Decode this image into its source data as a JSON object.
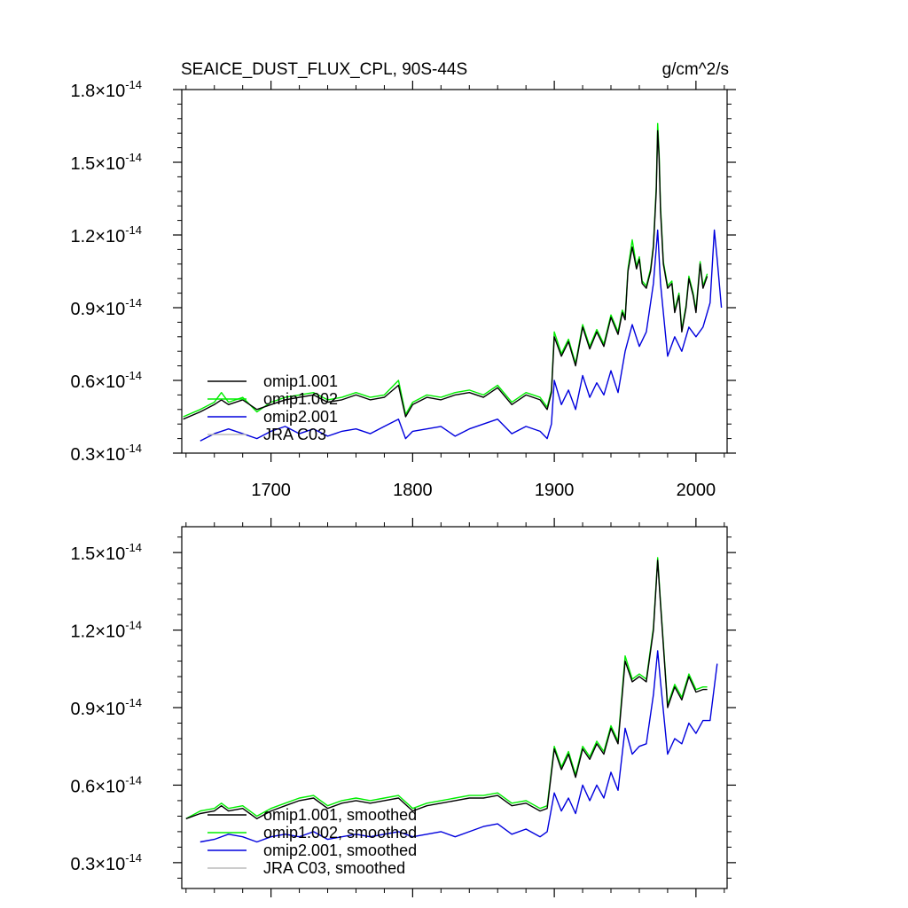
{
  "chart_data": [
    {
      "type": "line",
      "title": "SEAICE_DUST_FLUX_CPL, 90S-44S",
      "units": "g/cm^2/s",
      "xlim": [
        1637,
        2022
      ],
      "ylim": [
        0.3,
        1.8
      ],
      "y_exponent": "-14",
      "xticks": [
        1700,
        1800,
        1900,
        2000
      ],
      "yticks": [
        0.3,
        0.6,
        0.9,
        1.2,
        1.5,
        1.8
      ],
      "ytick_labels": [
        "0.3",
        "0.6",
        "0.9",
        "1.2",
        "1.5",
        "1.8"
      ],
      "legend_position": "bottom-left",
      "series": [
        {
          "name": "omip1.001",
          "color": "#000000",
          "x": [
            1638,
            1650,
            1660,
            1665,
            1670,
            1680,
            1690,
            1700,
            1710,
            1720,
            1730,
            1740,
            1750,
            1760,
            1770,
            1780,
            1790,
            1795,
            1800,
            1810,
            1820,
            1830,
            1840,
            1850,
            1860,
            1870,
            1880,
            1890,
            1895,
            1898,
            1900,
            1905,
            1910,
            1915,
            1920,
            1925,
            1930,
            1935,
            1940,
            1945,
            1948,
            1950,
            1952,
            1955,
            1958,
            1960,
            1962,
            1965,
            1968,
            1970,
            1972,
            1973,
            1974,
            1975,
            1977,
            1980,
            1983,
            1985,
            1988,
            1990,
            1993,
            1995,
            1998,
            2000,
            2003,
            2005,
            2008
          ],
          "y": [
            0.44,
            0.47,
            0.5,
            0.52,
            0.5,
            0.52,
            0.48,
            0.5,
            0.52,
            0.53,
            0.54,
            0.51,
            0.52,
            0.54,
            0.52,
            0.53,
            0.58,
            0.45,
            0.5,
            0.53,
            0.52,
            0.54,
            0.55,
            0.53,
            0.57,
            0.5,
            0.54,
            0.52,
            0.48,
            0.55,
            0.78,
            0.7,
            0.76,
            0.66,
            0.82,
            0.73,
            0.8,
            0.74,
            0.86,
            0.79,
            0.88,
            0.85,
            1.05,
            1.15,
            1.06,
            1.1,
            1.0,
            0.98,
            1.05,
            1.15,
            1.38,
            1.63,
            1.52,
            1.3,
            1.08,
            0.98,
            1.0,
            0.88,
            0.95,
            0.8,
            0.9,
            1.02,
            0.95,
            0.88,
            1.08,
            0.98,
            1.03
          ]
        },
        {
          "name": "omip1.002",
          "color": "#00ee00",
          "x": [
            1638,
            1650,
            1660,
            1665,
            1670,
            1680,
            1690,
            1700,
            1710,
            1720,
            1730,
            1740,
            1750,
            1760,
            1770,
            1780,
            1790,
            1795,
            1800,
            1810,
            1820,
            1830,
            1840,
            1850,
            1860,
            1870,
            1880,
            1890,
            1895,
            1898,
            1900,
            1905,
            1910,
            1915,
            1920,
            1925,
            1930,
            1935,
            1940,
            1945,
            1948,
            1950,
            1952,
            1955,
            1958,
            1960,
            1962,
            1965,
            1968,
            1970,
            1972,
            1973,
            1974,
            1975,
            1977,
            1980,
            1983,
            1985,
            1988,
            1990,
            1993,
            1995,
            1998,
            2000,
            2003,
            2005,
            2008
          ],
          "y": [
            0.45,
            0.48,
            0.51,
            0.55,
            0.51,
            0.53,
            0.47,
            0.51,
            0.53,
            0.54,
            0.55,
            0.52,
            0.53,
            0.55,
            0.53,
            0.54,
            0.6,
            0.46,
            0.51,
            0.54,
            0.53,
            0.55,
            0.56,
            0.54,
            0.58,
            0.51,
            0.55,
            0.53,
            0.49,
            0.56,
            0.8,
            0.71,
            0.77,
            0.67,
            0.83,
            0.74,
            0.81,
            0.75,
            0.87,
            0.8,
            0.89,
            0.86,
            1.06,
            1.18,
            1.07,
            1.11,
            1.01,
            0.99,
            1.06,
            1.16,
            1.4,
            1.66,
            1.54,
            1.32,
            1.09,
            0.99,
            1.01,
            0.89,
            0.96,
            0.81,
            0.91,
            1.03,
            0.96,
            0.89,
            1.09,
            0.99,
            1.04
          ]
        },
        {
          "name": "omip2.001",
          "color": "#0000dd",
          "x": [
            1650,
            1660,
            1670,
            1680,
            1690,
            1700,
            1710,
            1720,
            1730,
            1740,
            1750,
            1760,
            1770,
            1780,
            1790,
            1795,
            1800,
            1810,
            1820,
            1830,
            1840,
            1850,
            1860,
            1870,
            1880,
            1890,
            1895,
            1898,
            1900,
            1905,
            1910,
            1915,
            1920,
            1925,
            1930,
            1935,
            1940,
            1945,
            1950,
            1955,
            1960,
            1965,
            1970,
            1973,
            1975,
            1978,
            1980,
            1985,
            1990,
            1995,
            2000,
            2005,
            2010,
            2013,
            2015,
            2018
          ],
          "y": [
            0.35,
            0.38,
            0.4,
            0.38,
            0.36,
            0.39,
            0.41,
            0.38,
            0.4,
            0.37,
            0.39,
            0.4,
            0.38,
            0.41,
            0.44,
            0.36,
            0.39,
            0.4,
            0.41,
            0.37,
            0.4,
            0.42,
            0.44,
            0.38,
            0.41,
            0.39,
            0.36,
            0.42,
            0.6,
            0.5,
            0.56,
            0.48,
            0.62,
            0.53,
            0.59,
            0.54,
            0.64,
            0.55,
            0.72,
            0.83,
            0.74,
            0.8,
            1.0,
            1.22,
            1.0,
            0.82,
            0.7,
            0.78,
            0.72,
            0.82,
            0.78,
            0.82,
            0.92,
            1.22,
            1.1,
            0.9
          ]
        },
        {
          "name": "JRA C03",
          "color": "#bbbbbb",
          "x": [],
          "y": []
        }
      ]
    },
    {
      "type": "line",
      "title": "",
      "xlim": [
        1637,
        2022
      ],
      "ylim": [
        0.2,
        1.6
      ],
      "y_exponent": "-14",
      "xticks": [
        1700,
        1800,
        1900,
        2000
      ],
      "yticks": [
        0.3,
        0.6,
        0.9,
        1.2,
        1.5
      ],
      "ytick_labels": [
        "0.3",
        "0.6",
        "0.9",
        "1.2",
        "1.5"
      ],
      "legend_position": "bottom-left",
      "series": [
        {
          "name": "omip1.001, smoothed",
          "color": "#000000",
          "x": [
            1640,
            1650,
            1660,
            1665,
            1670,
            1680,
            1690,
            1700,
            1710,
            1720,
            1730,
            1740,
            1750,
            1760,
            1770,
            1780,
            1790,
            1800,
            1810,
            1820,
            1830,
            1840,
            1850,
            1860,
            1870,
            1880,
            1890,
            1895,
            1900,
            1905,
            1910,
            1915,
            1920,
            1925,
            1930,
            1935,
            1940,
            1945,
            1950,
            1955,
            1960,
            1965,
            1970,
            1973,
            1975,
            1980,
            1985,
            1990,
            1995,
            2000,
            2005,
            2008
          ],
          "y": [
            0.47,
            0.49,
            0.5,
            0.52,
            0.5,
            0.51,
            0.47,
            0.5,
            0.52,
            0.54,
            0.55,
            0.51,
            0.53,
            0.54,
            0.53,
            0.54,
            0.55,
            0.5,
            0.52,
            0.53,
            0.54,
            0.55,
            0.55,
            0.56,
            0.52,
            0.53,
            0.5,
            0.51,
            0.74,
            0.66,
            0.72,
            0.63,
            0.74,
            0.7,
            0.76,
            0.72,
            0.82,
            0.76,
            1.08,
            1.0,
            1.02,
            1.0,
            1.2,
            1.47,
            1.3,
            0.9,
            0.98,
            0.93,
            1.02,
            0.96,
            0.97,
            0.97
          ]
        },
        {
          "name": "omip1.002, smoothed",
          "color": "#00ee00",
          "x": [
            1640,
            1650,
            1660,
            1665,
            1670,
            1680,
            1690,
            1700,
            1710,
            1720,
            1730,
            1740,
            1750,
            1760,
            1770,
            1780,
            1790,
            1800,
            1810,
            1820,
            1830,
            1840,
            1850,
            1860,
            1870,
            1880,
            1890,
            1895,
            1900,
            1905,
            1910,
            1915,
            1920,
            1925,
            1930,
            1935,
            1940,
            1945,
            1950,
            1955,
            1960,
            1965,
            1970,
            1973,
            1975,
            1980,
            1985,
            1990,
            1995,
            2000,
            2005,
            2008
          ],
          "y": [
            0.47,
            0.5,
            0.51,
            0.53,
            0.51,
            0.52,
            0.48,
            0.51,
            0.53,
            0.55,
            0.56,
            0.52,
            0.54,
            0.55,
            0.54,
            0.55,
            0.56,
            0.51,
            0.53,
            0.54,
            0.55,
            0.56,
            0.56,
            0.57,
            0.53,
            0.54,
            0.51,
            0.52,
            0.75,
            0.67,
            0.73,
            0.64,
            0.75,
            0.71,
            0.77,
            0.73,
            0.83,
            0.77,
            1.1,
            1.01,
            1.03,
            1.01,
            1.21,
            1.48,
            1.31,
            0.91,
            0.99,
            0.94,
            1.03,
            0.97,
            0.98,
            0.98
          ]
        },
        {
          "name": "omip2.001, smoothed",
          "color": "#0000dd",
          "x": [
            1650,
            1660,
            1670,
            1680,
            1690,
            1700,
            1710,
            1720,
            1730,
            1740,
            1750,
            1760,
            1770,
            1780,
            1790,
            1800,
            1810,
            1820,
            1830,
            1840,
            1850,
            1860,
            1870,
            1880,
            1890,
            1895,
            1900,
            1905,
            1910,
            1915,
            1920,
            1925,
            1930,
            1935,
            1940,
            1945,
            1950,
            1955,
            1960,
            1965,
            1970,
            1973,
            1975,
            1980,
            1985,
            1990,
            1995,
            2000,
            2005,
            2010,
            2015
          ],
          "y": [
            0.38,
            0.39,
            0.41,
            0.4,
            0.38,
            0.4,
            0.41,
            0.4,
            0.42,
            0.39,
            0.4,
            0.41,
            0.4,
            0.41,
            0.42,
            0.4,
            0.41,
            0.42,
            0.4,
            0.42,
            0.44,
            0.45,
            0.41,
            0.43,
            0.4,
            0.42,
            0.57,
            0.5,
            0.55,
            0.49,
            0.6,
            0.54,
            0.6,
            0.55,
            0.65,
            0.58,
            0.82,
            0.72,
            0.75,
            0.76,
            0.95,
            1.12,
            1.0,
            0.72,
            0.78,
            0.76,
            0.84,
            0.8,
            0.85,
            0.85,
            1.07
          ]
        },
        {
          "name": "JRA C03, smoothed",
          "color": "#bbbbbb",
          "x": [],
          "y": []
        }
      ]
    }
  ]
}
